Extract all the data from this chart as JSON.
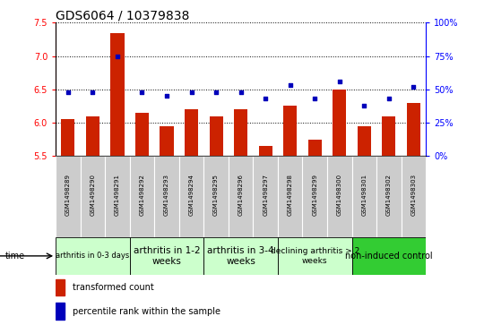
{
  "title": "GDS6064 / 10379838",
  "samples": [
    "GSM1498289",
    "GSM1498290",
    "GSM1498291",
    "GSM1498292",
    "GSM1498293",
    "GSM1498294",
    "GSM1498295",
    "GSM1498296",
    "GSM1498297",
    "GSM1498298",
    "GSM1498299",
    "GSM1498300",
    "GSM1498301",
    "GSM1498302",
    "GSM1498303"
  ],
  "bar_values": [
    6.05,
    6.1,
    7.35,
    6.15,
    5.95,
    6.2,
    6.1,
    6.2,
    5.65,
    6.25,
    5.75,
    6.5,
    5.95,
    6.1,
    6.3
  ],
  "dot_values": [
    48,
    48,
    75,
    48,
    45,
    48,
    48,
    48,
    43,
    53,
    43,
    56,
    38,
    43,
    52
  ],
  "ylim_left": [
    5.5,
    7.5
  ],
  "ylim_right": [
    0,
    100
  ],
  "yticks_left": [
    5.5,
    6.0,
    6.5,
    7.0,
    7.5
  ],
  "yticks_right": [
    0,
    25,
    50,
    75,
    100
  ],
  "bar_color": "#CC2200",
  "dot_color": "#0000BB",
  "groups": [
    {
      "label": "arthritis in 0-3 days",
      "start": 0,
      "end": 3,
      "color": "#CCFFCC",
      "fontsize": 6
    },
    {
      "label": "arthritis in 1-2\nweeks",
      "start": 3,
      "end": 6,
      "color": "#CCFFCC",
      "fontsize": 7.5
    },
    {
      "label": "arthritis in 3-4\nweeks",
      "start": 6,
      "end": 9,
      "color": "#CCFFCC",
      "fontsize": 7.5
    },
    {
      "label": "declining arthritis > 2\nweeks",
      "start": 9,
      "end": 12,
      "color": "#CCFFCC",
      "fontsize": 6.5
    },
    {
      "label": "non-induced control",
      "start": 12,
      "end": 15,
      "color": "#33CC33",
      "fontsize": 7
    }
  ],
  "legend_bar_label": "transformed count",
  "legend_dot_label": "percentile rank within the sample",
  "time_label": "time",
  "title_fontsize": 10,
  "sample_fontsize": 5,
  "tick_fontsize": 7,
  "sample_bg": "#CCCCCC",
  "sample_sep_color": "#AAAAAA"
}
